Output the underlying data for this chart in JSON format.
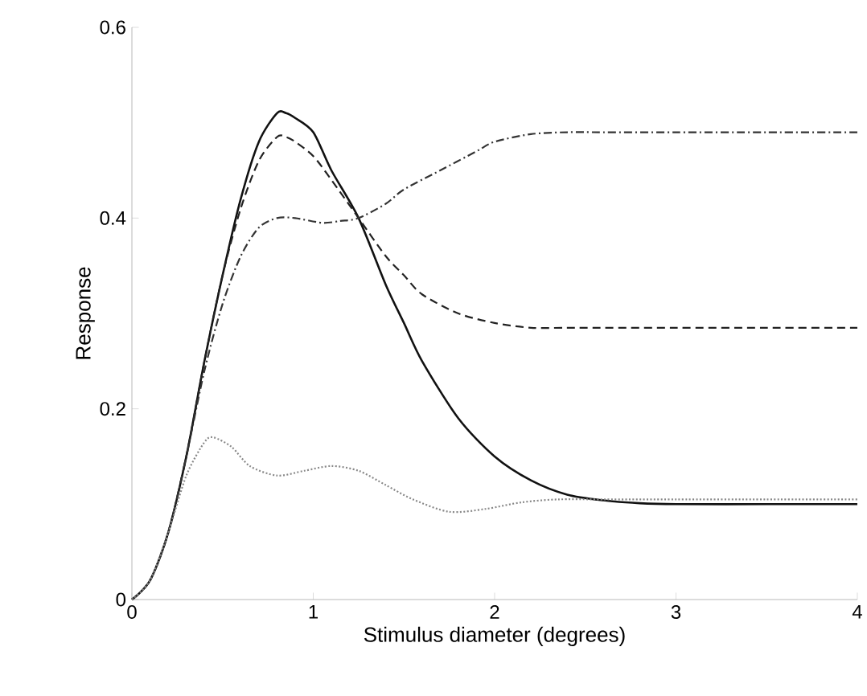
{
  "chart_data": {
    "type": "line",
    "xlabel": "Stimulus diameter (degrees)",
    "ylabel": "Response",
    "xlim": [
      0,
      4
    ],
    "ylim": [
      0,
      0.6
    ],
    "xticks": [
      0,
      1,
      2,
      3,
      4
    ],
    "yticks": [
      0,
      0.2,
      0.4,
      0.6
    ],
    "grid": false,
    "series": [
      {
        "color": "#111111",
        "line_style": "solid",
        "x": [
          0,
          0.1,
          0.2,
          0.3,
          0.4,
          0.5,
          0.6,
          0.7,
          0.8,
          0.85,
          0.9,
          1.0,
          1.1,
          1.25,
          1.4,
          1.5,
          1.6,
          1.8,
          2.0,
          2.2,
          2.4,
          2.6,
          2.8,
          3.0,
          3.5,
          4.0
        ],
        "values": [
          0,
          0.02,
          0.07,
          0.15,
          0.25,
          0.34,
          0.42,
          0.48,
          0.51,
          0.51,
          0.505,
          0.49,
          0.45,
          0.4,
          0.33,
          0.29,
          0.25,
          0.19,
          0.15,
          0.125,
          0.11,
          0.104,
          0.101,
          0.1,
          0.1,
          0.1
        ]
      },
      {
        "color": "#222222",
        "line_style": "dashed",
        "x": [
          0,
          0.1,
          0.2,
          0.3,
          0.4,
          0.5,
          0.6,
          0.7,
          0.8,
          0.85,
          0.9,
          1.0,
          1.1,
          1.25,
          1.4,
          1.5,
          1.6,
          1.8,
          2.0,
          2.2,
          2.4,
          2.6,
          3.0,
          3.5,
          4.0
        ],
        "values": [
          0,
          0.02,
          0.07,
          0.15,
          0.25,
          0.34,
          0.41,
          0.46,
          0.485,
          0.485,
          0.48,
          0.465,
          0.44,
          0.4,
          0.36,
          0.34,
          0.32,
          0.3,
          0.29,
          0.285,
          0.285,
          0.285,
          0.285,
          0.285,
          0.285
        ]
      },
      {
        "color": "#333333",
        "line_style": "dashdot",
        "x": [
          0,
          0.1,
          0.2,
          0.3,
          0.4,
          0.5,
          0.6,
          0.7,
          0.8,
          0.9,
          1.05,
          1.15,
          1.25,
          1.4,
          1.5,
          1.7,
          1.9,
          2.0,
          2.2,
          2.4,
          2.6,
          3.0,
          3.5,
          4.0
        ],
        "values": [
          0,
          0.02,
          0.07,
          0.15,
          0.24,
          0.31,
          0.36,
          0.39,
          0.4,
          0.4,
          0.395,
          0.397,
          0.4,
          0.415,
          0.43,
          0.45,
          0.47,
          0.48,
          0.488,
          0.49,
          0.49,
          0.49,
          0.49,
          0.49
        ]
      },
      {
        "color": "#888888",
        "line_style": "dotted",
        "x": [
          0,
          0.1,
          0.2,
          0.3,
          0.4,
          0.45,
          0.55,
          0.65,
          0.8,
          0.95,
          1.1,
          1.25,
          1.4,
          1.55,
          1.75,
          1.95,
          2.15,
          2.35,
          2.6,
          3.0,
          3.5,
          4.0
        ],
        "values": [
          0,
          0.02,
          0.07,
          0.13,
          0.165,
          0.17,
          0.16,
          0.14,
          0.13,
          0.135,
          0.14,
          0.135,
          0.12,
          0.105,
          0.092,
          0.095,
          0.102,
          0.105,
          0.105,
          0.105,
          0.105,
          0.105
        ]
      }
    ]
  }
}
